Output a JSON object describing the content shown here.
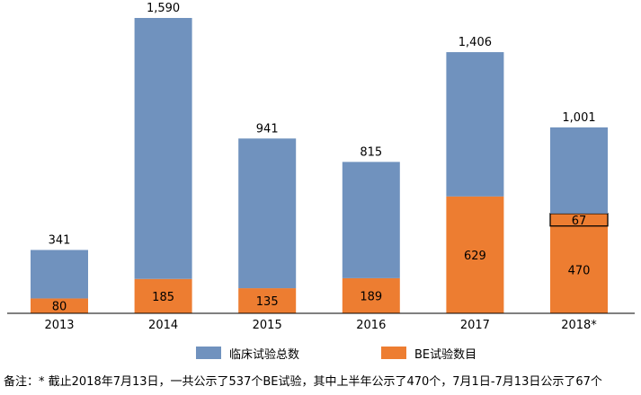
{
  "chart_data": {
    "type": "bar",
    "stacked": true,
    "categories": [
      "2013",
      "2014",
      "2015",
      "2016",
      "2017",
      "2018*"
    ],
    "series": [
      {
        "name": "BE试验数目",
        "color": "#ED7D31",
        "values": [
          80,
          185,
          135,
          189,
          629,
          470
        ]
      },
      {
        "name": "",
        "color": "#ED7D31",
        "values": [
          0,
          0,
          0,
          0,
          0,
          67
        ]
      },
      {
        "name": "",
        "color": "#7092BE",
        "values": [
          261,
          1405,
          806,
          626,
          777,
          464
        ]
      }
    ],
    "value_labels": {
      "be": [
        "80",
        "185",
        "135",
        "189",
        "629",
        "470"
      ],
      "be_2018_second_half": "67",
      "total": [
        "341",
        "1,590",
        "941",
        "815",
        "1,406",
        "1,001"
      ]
    },
    "totals": [
      341,
      1590,
      941,
      815,
      1406,
      1001
    ],
    "ylim": [
      0,
      1700
    ],
    "legend": {
      "placement": "bottom",
      "items": [
        {
          "label": "临床试验总数",
          "color": "#7092BE"
        },
        {
          "label": "BE试验数目",
          "color": "#ED7D31"
        }
      ]
    },
    "grid": false
  },
  "footnote": "备注：* 截止2018年7月13日，一共公示了537个BE试验，其中上半年公示了470个，7月1日-7月13日公示了67个"
}
